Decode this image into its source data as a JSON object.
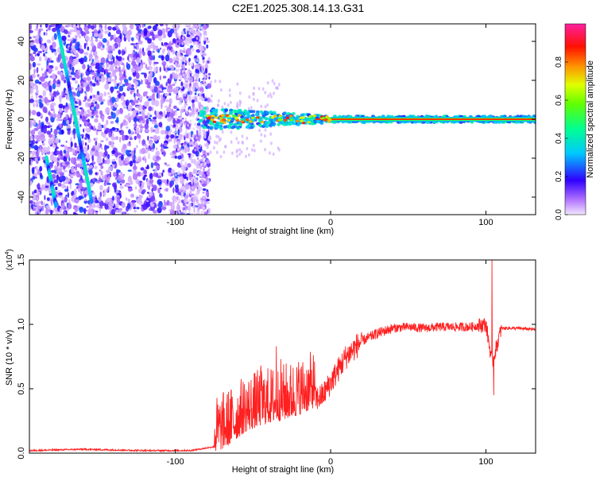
{
  "page_title": "C2E1.2025.308.14.13.G31",
  "chart_data": [
    {
      "type": "heatmap",
      "title": "C2E1.2025.308.14.13.G31",
      "xlabel": "Height of straight line (km)",
      "ylabel": "Frequency (Hz)",
      "xlim": [
        -194,
        132
      ],
      "ylim": [
        -49,
        49
      ],
      "x_ticks": [
        -100,
        0,
        100
      ],
      "x_tick_labels": [
        "-100",
        "0",
        "100"
      ],
      "y_ticks": [
        -40,
        -20,
        0,
        20,
        40
      ],
      "y_tick_labels": [
        "-40",
        "-20",
        "0",
        "20",
        "40"
      ],
      "colorbar": {
        "label": "Normalized spectral amplitude",
        "range": [
          0,
          1
        ],
        "ticks": [
          0.0,
          0.2,
          0.4,
          0.6,
          0.8
        ],
        "tick_labels": [
          "0.0",
          "0.2",
          "0.4",
          "0.6",
          "0.8"
        ]
      },
      "features": [
        {
          "name": "noise region",
          "x_range": [
            -194,
            -78
          ]
        },
        {
          "name": "carrier line",
          "frequency_hz": 0,
          "x_range": [
            -85,
            132
          ],
          "amplitude": 0.85
        },
        {
          "name": "diagonal streak 1",
          "from": [
            -176,
            48
          ],
          "to": [
            -154,
            -42
          ]
        },
        {
          "name": "diagonal streak 2",
          "from": [
            -183,
            -20
          ],
          "to": [
            -177,
            -44
          ]
        }
      ]
    },
    {
      "type": "line",
      "xlabel": "Height of straight line (km)",
      "ylabel": "SNR (10 * v/v)",
      "y_multiplier_label": "(x10",
      "y_multiplier_exp": "4",
      "xlim": [
        -194,
        132
      ],
      "ylim": [
        0,
        1.5
      ],
      "x_ticks": [
        -100,
        0,
        100
      ],
      "x_tick_labels": [
        "-100",
        "0",
        "100"
      ],
      "y_ticks": [
        0.0,
        0.5,
        1.0,
        1.5
      ],
      "y_tick_labels": [
        "0.0",
        "0.5",
        "1.0",
        "1.5"
      ],
      "series": [
        {
          "name": "SNR",
          "color": "#ff2020",
          "x": [
            -194,
            -160,
            -120,
            -90,
            -75,
            -65,
            -55,
            -45,
            -35,
            -25,
            -15,
            -5,
            0,
            10,
            20,
            30,
            40,
            50,
            60,
            70,
            80,
            90,
            100,
            104,
            110,
            120,
            132
          ],
          "y": [
            0.02,
            0.03,
            0.02,
            0.02,
            0.05,
            0.12,
            0.22,
            0.27,
            0.3,
            0.33,
            0.38,
            0.45,
            0.55,
            0.75,
            0.87,
            0.93,
            0.97,
            0.98,
            0.97,
            0.98,
            0.98,
            0.98,
            1.0,
            0.7,
            0.97,
            0.97,
            0.96
          ],
          "spikes": [
            {
              "x": 104,
              "y": 1.5
            },
            {
              "x": 105,
              "y": 0.45
            },
            {
              "x": -35,
              "y": 0.83
            },
            {
              "x": -32,
              "y": 0.73
            },
            {
              "x": -45,
              "y": 0.68
            }
          ]
        }
      ]
    }
  ]
}
